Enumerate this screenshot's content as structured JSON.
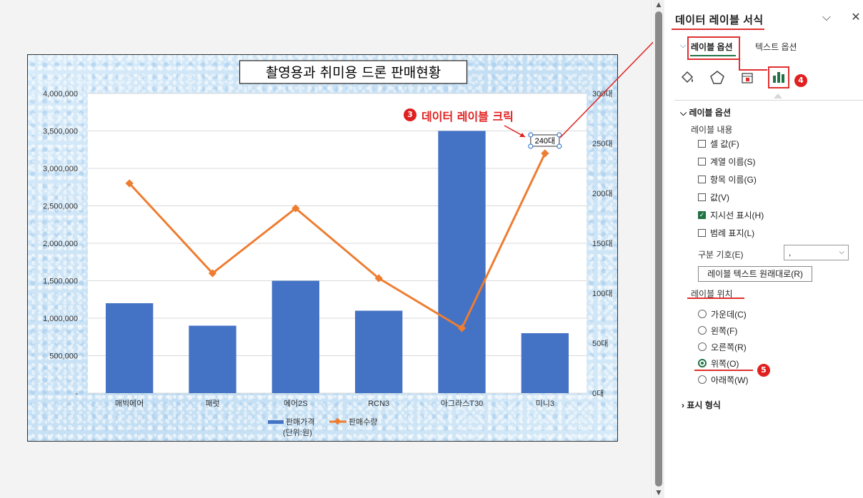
{
  "chart_data": {
    "type": "bar",
    "title": "촬영용과 취미용 드론 판매현황",
    "categories": [
      "매빅에어",
      "패럿",
      "에어2S",
      "RCN3",
      "아그라스T30",
      "미니3"
    ],
    "series": [
      {
        "name": "판매가격",
        "type": "bar",
        "axis": "left",
        "color": "#4472c4",
        "values": [
          1200000,
          900000,
          1500000,
          1100000,
          3500000,
          800000
        ]
      },
      {
        "name": "판매수량",
        "type": "line",
        "axis": "right",
        "color": "#ed7d31",
        "values": [
          210,
          120,
          185,
          115,
          65,
          240
        ]
      }
    ],
    "left_axis": {
      "ylim": [
        0,
        4000000
      ],
      "ticks": [
        "-",
        "500,000",
        "1,000,000",
        "1,500,000",
        "2,000,000",
        "2,500,000",
        "3,000,000",
        "3,500,000",
        "4,000,000"
      ]
    },
    "right_axis": {
      "ylim": [
        0,
        300
      ],
      "ticks": [
        "0대",
        "50대",
        "100대",
        "150대",
        "200대",
        "250대",
        "300대"
      ]
    },
    "legend": {
      "position": "bottom",
      "items": [
        "판매가격\n(단위:원)",
        "판매수량"
      ]
    },
    "data_label": {
      "series": "판매수량",
      "category": "미니3",
      "text": "240대"
    },
    "grid": true
  },
  "annotation": {
    "step3_badge": "3",
    "step3_text": "데이터 레이블 크릭",
    "step4_badge": "4",
    "step5_badge": "5"
  },
  "panel": {
    "title": "데이터 레이블 서식",
    "tabs": {
      "active": "레이블 옵션",
      "inactive": "텍스트 옵션"
    },
    "icons": [
      "fill-line-icon",
      "effects-icon",
      "size-properties-icon",
      "label-options-icon"
    ],
    "section_label_options": "레이블 옵션",
    "label_contains": "레이블 내용",
    "checkboxes": [
      {
        "label": "셀 값(F)",
        "checked": false
      },
      {
        "label": "계열 이름(S)",
        "checked": false
      },
      {
        "label": "항목 이름(G)",
        "checked": false
      },
      {
        "label": "값(V)",
        "checked": false
      },
      {
        "label": "지시선 표시(H)",
        "checked": true
      },
      {
        "label": "범례 표지(L)",
        "checked": false
      }
    ],
    "separator_label": "구분 기호(E)",
    "separator_value": ",",
    "reset_button": "레이블 텍스트 원래대로(R)",
    "label_position": "레이블 위치",
    "positions": [
      {
        "label": "가운데(C)",
        "selected": false
      },
      {
        "label": "왼쪽(F)",
        "selected": false
      },
      {
        "label": "오른쪽(R)",
        "selected": false
      },
      {
        "label": "위쪽(O)",
        "selected": true
      },
      {
        "label": "아래쪽(W)",
        "selected": false
      }
    ],
    "number_format": "표시 형식"
  }
}
